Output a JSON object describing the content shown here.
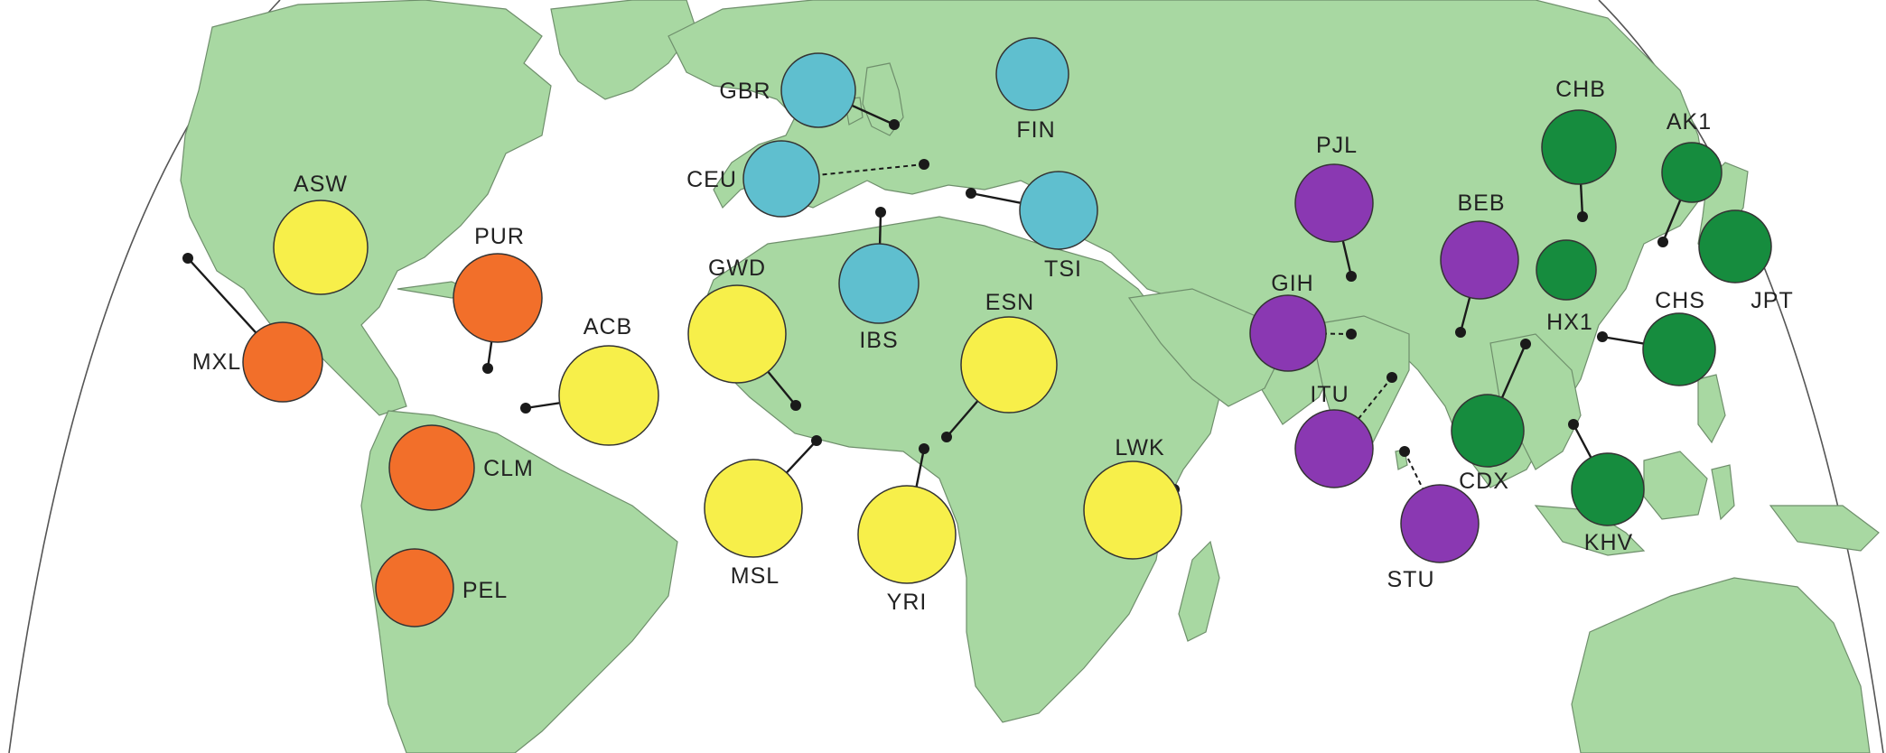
{
  "map": {
    "colors": {
      "land": "#a8d8a2",
      "ocean": "#ffffff",
      "african": "#f7ef4a",
      "american": "#f26f2a",
      "european": "#5fbfcf",
      "south_asian": "#8a38b2",
      "east_asian": "#168c3e"
    },
    "populations": [
      {
        "code": "GBR",
        "group": "european"
      },
      {
        "code": "FIN",
        "group": "european"
      },
      {
        "code": "CEU",
        "group": "european"
      },
      {
        "code": "TSI",
        "group": "european"
      },
      {
        "code": "IBS",
        "group": "european"
      },
      {
        "code": "ASW",
        "group": "african"
      },
      {
        "code": "ACB",
        "group": "african"
      },
      {
        "code": "GWD",
        "group": "african"
      },
      {
        "code": "ESN",
        "group": "african"
      },
      {
        "code": "MSL",
        "group": "african"
      },
      {
        "code": "YRI",
        "group": "african"
      },
      {
        "code": "LWK",
        "group": "african"
      },
      {
        "code": "PUR",
        "group": "american"
      },
      {
        "code": "MXL",
        "group": "american"
      },
      {
        "code": "CLM",
        "group": "american"
      },
      {
        "code": "PEL",
        "group": "american"
      },
      {
        "code": "PJL",
        "group": "south_asian"
      },
      {
        "code": "GIH",
        "group": "south_asian"
      },
      {
        "code": "BEB",
        "group": "south_asian"
      },
      {
        "code": "ITU",
        "group": "south_asian"
      },
      {
        "code": "STU",
        "group": "south_asian"
      },
      {
        "code": "CHB",
        "group": "east_asian"
      },
      {
        "code": "AK1",
        "group": "east_asian"
      },
      {
        "code": "JPT",
        "group": "east_asian"
      },
      {
        "code": "HX1",
        "group": "east_asian"
      },
      {
        "code": "CHS",
        "group": "east_asian"
      },
      {
        "code": "CDX",
        "group": "east_asian"
      },
      {
        "code": "KHV",
        "group": "east_asian"
      }
    ]
  }
}
